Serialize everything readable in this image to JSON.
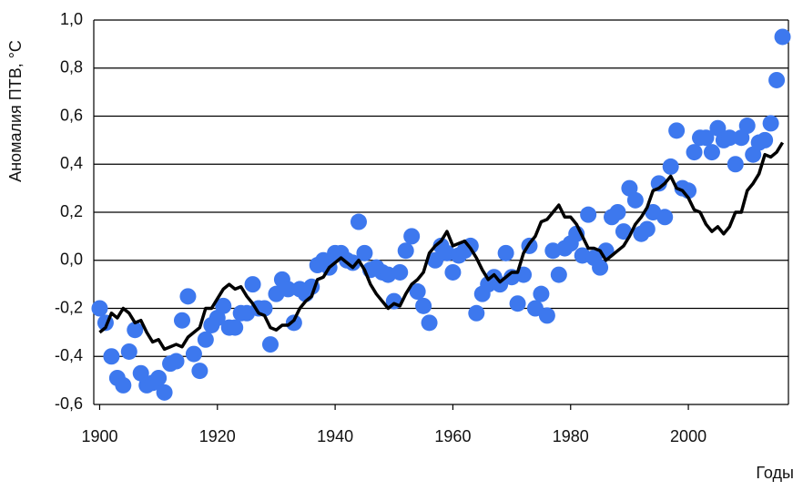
{
  "chart_data": {
    "type": "scatter",
    "ylabel": "Аномалия ПТВ, °C",
    "xlabel": "Годы",
    "x": [
      1900,
      1901,
      1902,
      1903,
      1904,
      1905,
      1906,
      1907,
      1908,
      1909,
      1910,
      1911,
      1912,
      1913,
      1914,
      1915,
      1916,
      1917,
      1918,
      1919,
      1920,
      1921,
      1922,
      1923,
      1924,
      1925,
      1926,
      1927,
      1928,
      1929,
      1930,
      1931,
      1932,
      1933,
      1934,
      1935,
      1936,
      1937,
      1938,
      1939,
      1940,
      1941,
      1942,
      1943,
      1944,
      1945,
      1946,
      1947,
      1948,
      1949,
      1950,
      1951,
      1952,
      1953,
      1954,
      1955,
      1956,
      1957,
      1958,
      1959,
      1960,
      1961,
      1962,
      1963,
      1964,
      1965,
      1966,
      1967,
      1968,
      1969,
      1970,
      1971,
      1972,
      1973,
      1974,
      1975,
      1976,
      1977,
      1978,
      1979,
      1980,
      1981,
      1982,
      1983,
      1984,
      1985,
      1986,
      1987,
      1988,
      1989,
      1990,
      1991,
      1992,
      1993,
      1994,
      1995,
      1996,
      1997,
      1998,
      1999,
      2000,
      2001,
      2002,
      2003,
      2004,
      2005,
      2006,
      2007,
      2008,
      2009,
      2010,
      2011,
      2012,
      2013,
      2014,
      2015,
      2016
    ],
    "series": [
      {
        "type": "scatter",
        "color": "#3d78ee",
        "values": [
          -0.2,
          -0.26,
          -0.4,
          -0.49,
          -0.52,
          -0.38,
          -0.29,
          -0.47,
          -0.52,
          -0.51,
          -0.49,
          -0.55,
          -0.43,
          -0.42,
          -0.25,
          -0.15,
          -0.39,
          -0.46,
          -0.33,
          -0.27,
          -0.24,
          -0.19,
          -0.28,
          -0.28,
          -0.22,
          -0.22,
          -0.1,
          -0.2,
          -0.2,
          -0.35,
          -0.14,
          -0.08,
          -0.12,
          -0.26,
          -0.12,
          -0.14,
          -0.11,
          -0.02,
          0.0,
          -0.03,
          0.03,
          0.03,
          0.0,
          -0.01,
          0.16,
          0.03,
          -0.04,
          -0.03,
          -0.05,
          -0.06,
          -0.17,
          -0.05,
          0.04,
          0.1,
          -0.13,
          -0.19,
          -0.26,
          0.0,
          0.06,
          0.03,
          -0.05,
          0.02,
          0.04,
          0.06,
          -0.22,
          -0.14,
          -0.1,
          -0.07,
          -0.1,
          0.03,
          -0.07,
          -0.18,
          -0.06,
          0.06,
          -0.2,
          -0.14,
          -0.23,
          0.04,
          -0.06,
          0.05,
          0.07,
          0.11,
          0.02,
          0.19,
          0.01,
          -0.03,
          0.04,
          0.18,
          0.2,
          0.12,
          0.3,
          0.25,
          0.11,
          0.13,
          0.2,
          0.32,
          0.18,
          0.39,
          0.54,
          0.3,
          0.29,
          0.45,
          0.51,
          0.51,
          0.45,
          0.55,
          0.5,
          0.51,
          0.4,
          0.51,
          0.56,
          0.44,
          0.49,
          0.5,
          0.57,
          0.75,
          0.93
        ]
      },
      {
        "type": "line",
        "color": "#000000",
        "values": [
          -0.3,
          -0.28,
          -0.22,
          -0.24,
          -0.2,
          -0.22,
          -0.26,
          -0.25,
          -0.3,
          -0.34,
          -0.33,
          -0.37,
          -0.36,
          -0.35,
          -0.36,
          -0.32,
          -0.3,
          -0.28,
          -0.2,
          -0.2,
          -0.16,
          -0.12,
          -0.1,
          -0.12,
          -0.11,
          -0.15,
          -0.18,
          -0.22,
          -0.23,
          -0.28,
          -0.29,
          -0.27,
          -0.27,
          -0.25,
          -0.2,
          -0.17,
          -0.15,
          -0.08,
          -0.07,
          -0.03,
          -0.01,
          0.01,
          -0.01,
          -0.03,
          0.0,
          -0.04,
          -0.1,
          -0.14,
          -0.17,
          -0.2,
          -0.18,
          -0.19,
          -0.14,
          -0.1,
          -0.08,
          -0.05,
          0.03,
          0.06,
          0.08,
          0.12,
          0.06,
          0.07,
          0.08,
          0.05,
          0.01,
          -0.04,
          -0.08,
          -0.06,
          -0.09,
          -0.07,
          -0.05,
          -0.05,
          0.03,
          0.07,
          0.1,
          0.16,
          0.17,
          0.2,
          0.23,
          0.18,
          0.18,
          0.15,
          0.1,
          0.05,
          0.05,
          0.04,
          0.0,
          0.02,
          0.04,
          0.06,
          0.1,
          0.15,
          0.18,
          0.22,
          0.29,
          0.3,
          0.32,
          0.35,
          0.3,
          0.29,
          0.26,
          0.21,
          0.2,
          0.15,
          0.12,
          0.14,
          0.11,
          0.14,
          0.2,
          0.2,
          0.29,
          0.32,
          0.36,
          0.44,
          0.43,
          0.45,
          0.49
        ]
      }
    ],
    "xlim": [
      1899,
      2017
    ],
    "xticks": [
      1900,
      1920,
      1940,
      1960,
      1980,
      2000
    ],
    "ylim": [
      -0.6,
      1.0
    ],
    "yticks": [
      {
        "value": -0.6,
        "label": "-0,6"
      },
      {
        "value": -0.4,
        "label": "-0,4"
      },
      {
        "value": -0.2,
        "label": "-0,2"
      },
      {
        "value": 0,
        "label": "0,0"
      },
      {
        "value": 0.2,
        "label": "0,2"
      },
      {
        "value": 0.4,
        "label": "0,4"
      },
      {
        "value": 0.6,
        "label": "0,6"
      },
      {
        "value": 0.8,
        "label": "0,8"
      },
      {
        "value": 1.0,
        "label": "1,0"
      }
    ],
    "grid": true
  }
}
